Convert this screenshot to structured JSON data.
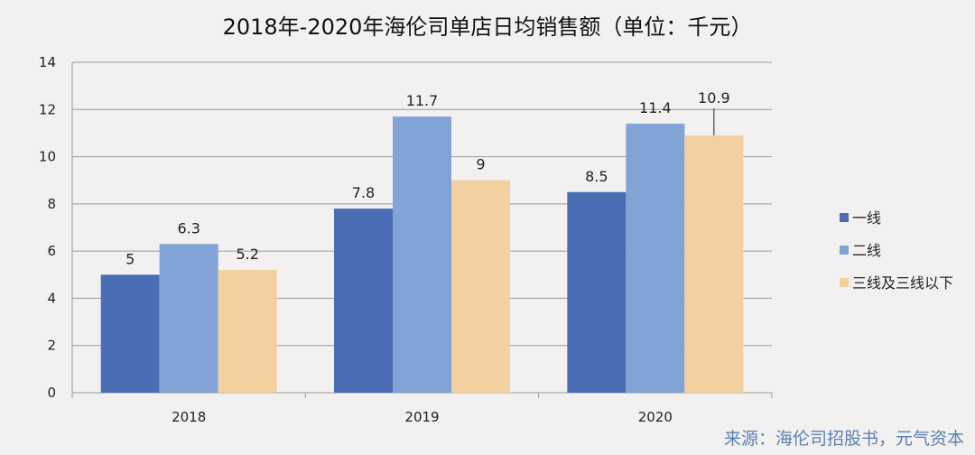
{
  "chart_data": {
    "type": "bar",
    "title": "2018年-2020年海伦司单店日均销售额（单位：千元）",
    "categories": [
      "2018",
      "2019",
      "2020"
    ],
    "series": [
      {
        "name": "一线",
        "values": [
          5,
          7.8,
          8.5
        ],
        "color": "#4a6db5"
      },
      {
        "name": "二线",
        "values": [
          6.3,
          11.7,
          11.4
        ],
        "color": "#82a3d6"
      },
      {
        "name": "三线及三线以下",
        "values": [
          5.2,
          9,
          10.9
        ],
        "color": "#f2d0a0"
      }
    ],
    "ylim": [
      0,
      14
    ],
    "yticks": [
      0,
      2,
      4,
      6,
      8,
      10,
      12,
      14
    ],
    "grid": true,
    "legend": "right",
    "source": "来源：海伦司招股书，元气资本"
  }
}
